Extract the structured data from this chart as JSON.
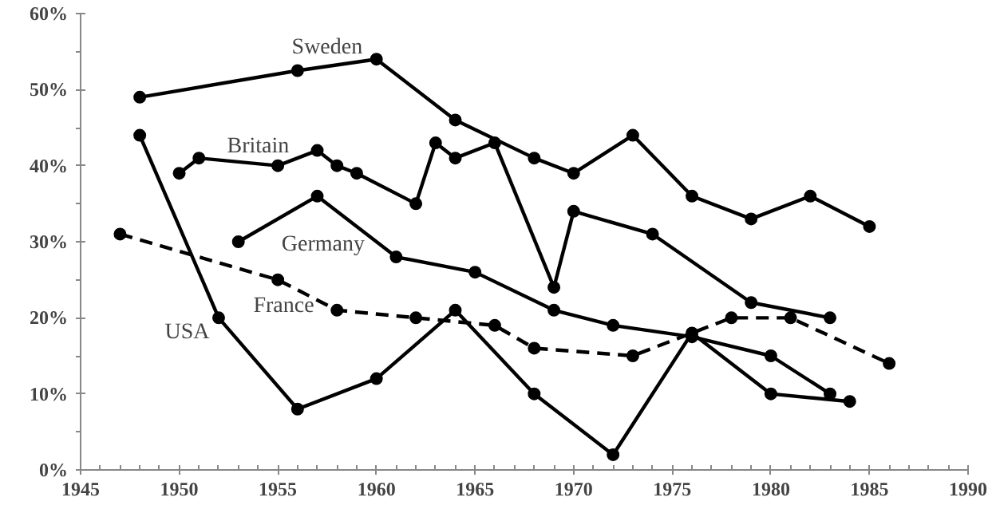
{
  "chart_data": {
    "type": "line",
    "xlim": [
      1945,
      1990
    ],
    "xticks": [
      1945,
      1950,
      1955,
      1960,
      1965,
      1970,
      1975,
      1980,
      1985,
      1990
    ],
    "ylim": [
      0,
      60
    ],
    "yticks": [
      {
        "value": 0,
        "label": "0%"
      },
      {
        "value": 10,
        "label": "10%"
      },
      {
        "value": 20,
        "label": "20%"
      },
      {
        "value": 30,
        "label": "30%"
      },
      {
        "value": 40,
        "label": "40%"
      },
      {
        "value": 50,
        "label": "50%"
      },
      {
        "value": 60,
        "label": "60%"
      }
    ],
    "grid": false,
    "marker": "circle",
    "series": [
      {
        "name": "Sweden",
        "color": "#000000",
        "x": [
          1948,
          1956,
          1960,
          1964,
          1968,
          1970,
          1973,
          1976,
          1979,
          1982,
          1985
        ],
        "values": [
          49,
          52.5,
          54,
          46,
          41,
          39,
          44,
          36,
          33,
          36,
          32
        ]
      },
      {
        "name": "Britain",
        "color": "#000000",
        "x": [
          1950,
          1951,
          1955,
          1957,
          1958,
          1959,
          1962,
          1963,
          1964,
          1966,
          1969,
          1970,
          1974,
          1979,
          1983
        ],
        "values": [
          39,
          41,
          40,
          42,
          40,
          39,
          35,
          43,
          41,
          43,
          24,
          34,
          31,
          22,
          20
        ]
      },
      {
        "name": "Germany",
        "color": "#000000",
        "x": [
          1953,
          1957,
          1961,
          1965,
          1969,
          1972,
          1976,
          1980,
          1983
        ],
        "values": [
          30,
          36,
          28,
          26,
          21,
          19,
          17.5,
          15,
          10
        ]
      },
      {
        "name": "France",
        "color": "#000000",
        "line_style": "dashed",
        "x": [
          1947,
          1955,
          1958,
          1962,
          1966,
          1968,
          1973,
          1978,
          1981,
          1986
        ],
        "values": [
          31,
          25,
          21,
          20,
          19,
          16,
          15,
          20,
          20,
          14
        ]
      },
      {
        "name": "USA",
        "color": "#000000",
        "x": [
          1948,
          1952,
          1956,
          1960,
          1964,
          1968,
          1972,
          1976,
          1980,
          1984
        ],
        "values": [
          44,
          20,
          8,
          12,
          21,
          10,
          2,
          18,
          10,
          9
        ]
      }
    ]
  }
}
